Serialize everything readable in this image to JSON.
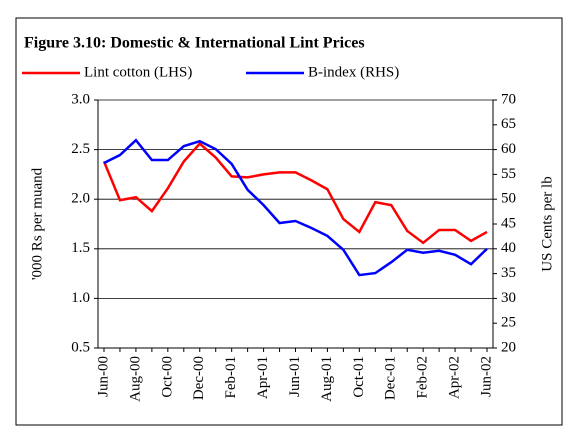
{
  "chart_data": {
    "type": "line",
    "title": "Figure 3.10: Domestic & International Lint Prices",
    "y_label": "'000 Rs per muand",
    "y2_label": "US Cents per lb",
    "categories": [
      "Jun-00",
      null,
      "Aug-00",
      null,
      "Oct-00",
      null,
      "Dec-00",
      null,
      "Feb-01",
      null,
      "Apr-01",
      null,
      "Jun-01",
      null,
      "Aug-01",
      null,
      "Oct-01",
      null,
      "Dec-01",
      null,
      "Feb-02",
      null,
      "Apr-02",
      null,
      "Jun-02"
    ],
    "series": [
      {
        "name": "Lint cotton (LHS)",
        "color": "#ff0000",
        "axis": "y",
        "values": [
          2.38,
          1.99,
          2.02,
          1.88,
          2.11,
          2.38,
          2.56,
          2.42,
          2.23,
          2.22,
          2.25,
          2.27,
          2.27,
          2.19,
          2.1,
          1.8,
          1.67,
          1.97,
          1.94,
          1.68,
          1.56,
          1.69,
          1.69,
          1.58,
          1.67
        ]
      },
      {
        "name": "B-index (RHS)",
        "color": "#0000ff",
        "axis": "y2",
        "values": [
          57.3,
          58.9,
          61.9,
          57.9,
          57.9,
          60.7,
          61.7,
          60.1,
          57.1,
          51.9,
          48.8,
          45.2,
          45.6,
          44.2,
          42.6,
          39.8,
          34.7,
          35.1,
          37.3,
          39.8,
          39.2,
          39.6,
          38.8,
          36.9,
          40.0
        ]
      }
    ],
    "ylim": [
      0.5,
      3.0
    ],
    "yticks": [
      0.5,
      {
        "value": 1.0,
        "label": "1.0"
      },
      1.5,
      {
        "value": 2.0,
        "label": "2.0"
      },
      2.5,
      {
        "value": 3.0,
        "label": "3.0"
      }
    ],
    "y2lim": [
      20,
      70
    ],
    "y2ticks": [
      20,
      25,
      30,
      35,
      40,
      45,
      50,
      55,
      60,
      65,
      70
    ],
    "grid": true,
    "legend": "top"
  }
}
